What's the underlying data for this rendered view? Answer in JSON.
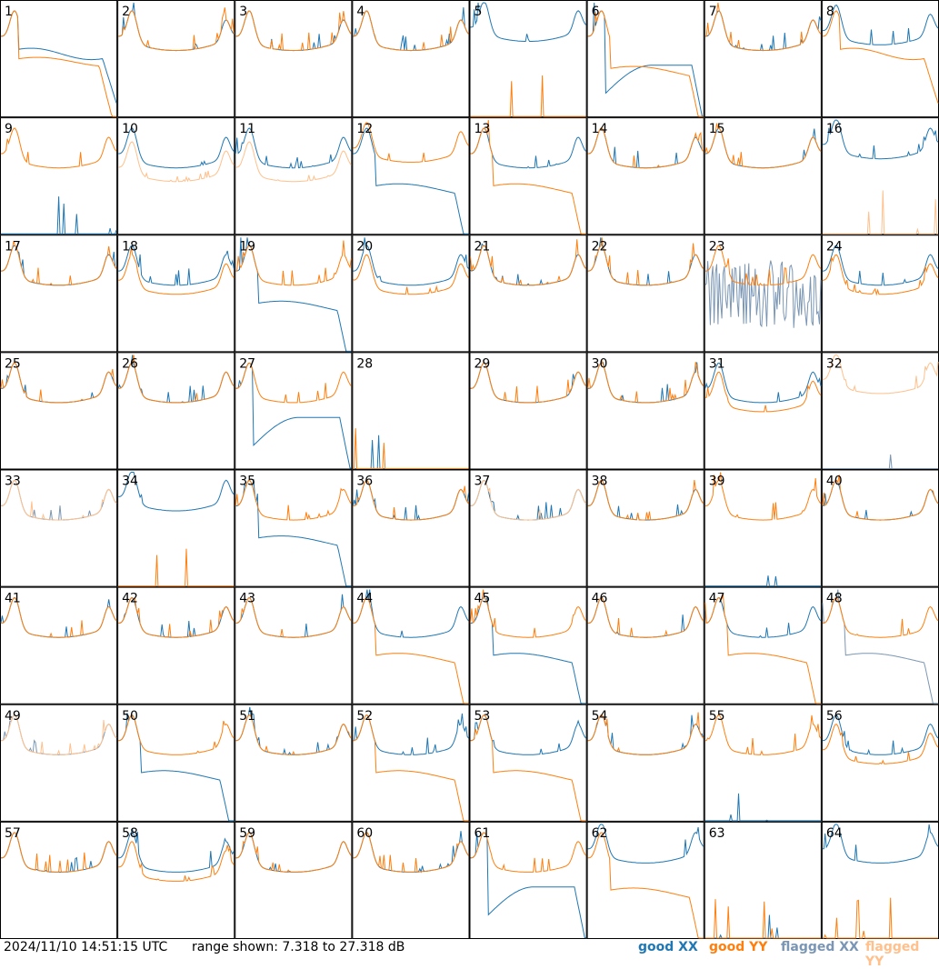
{
  "footer": {
    "timestamp": "2024/11/10 14:51:15 UTC",
    "range_text": "range shown: 7.318 to 27.318 dB"
  },
  "legend": [
    {
      "label": "good XX",
      "color": "#1f77b4"
    },
    {
      "label": "good YY",
      "color": "#ff7f0e"
    },
    {
      "label": "flagged XX",
      "color": "#7a96b4"
    },
    {
      "label": "flagged YY",
      "color": "#ffc08c"
    }
  ],
  "chart_data": {
    "type": "line",
    "title": "",
    "xlabel": "",
    "ylabel": "",
    "ylim": [
      7.318,
      27.318
    ],
    "unit": "dB",
    "grid_layout": "8x8 small multiples",
    "panel_labels": [
      "1",
      "2",
      "3",
      "4",
      "5",
      "6",
      "7",
      "8",
      "9",
      "10",
      "11",
      "12",
      "13",
      "14",
      "15",
      "16",
      "17",
      "18",
      "19",
      "20",
      "21",
      "22",
      "23",
      "24",
      "25",
      "26",
      "27",
      "28",
      "29",
      "30",
      "31",
      "32",
      "33",
      "34",
      "35",
      "36",
      "37",
      "38",
      "39",
      "40",
      "41",
      "42",
      "43",
      "44",
      "45",
      "46",
      "47",
      "48",
      "49",
      "50",
      "51",
      "52",
      "53",
      "54",
      "55",
      "56",
      "57",
      "58",
      "59",
      "60",
      "61",
      "62",
      "63",
      "64"
    ],
    "series_kinds": [
      "good XX",
      "good YY",
      "flagged XX",
      "flagged YY"
    ],
    "panels": [
      {
        "id": "1",
        "xx": "rolloff_mid",
        "yy": "rolloff_low",
        "xx_flag": false,
        "yy_flag": false
      },
      {
        "id": "2",
        "xx": "normal",
        "yy": "normal",
        "xx_flag": false,
        "yy_flag": false
      },
      {
        "id": "3",
        "xx": "normal",
        "yy": "normal",
        "xx_flag": false,
        "yy_flag": false
      },
      {
        "id": "4",
        "xx": "normal",
        "yy": "normal",
        "xx_flag": false,
        "yy_flag": false
      },
      {
        "id": "5",
        "xx": "high",
        "yy": "dead",
        "xx_flag": false,
        "yy_flag": false
      },
      {
        "id": "6",
        "xx": "deep",
        "yy": "drop",
        "xx_flag": false,
        "yy_flag": false
      },
      {
        "id": "7",
        "xx": "normal",
        "yy": "normal",
        "xx_flag": false,
        "yy_flag": false
      },
      {
        "id": "8",
        "xx": "offset_up",
        "yy": "rolloff_mid",
        "xx_flag": false,
        "yy_flag": false
      },
      {
        "id": "9",
        "xx": "dead",
        "yy": "normal",
        "xx_flag": false,
        "yy_flag": false
      },
      {
        "id": "10",
        "xx": "normal",
        "yy": "lowmid",
        "xx_flag": false,
        "yy_flag": true
      },
      {
        "id": "11",
        "xx": "normal",
        "yy": "lowmid",
        "xx_flag": false,
        "yy_flag": true
      },
      {
        "id": "12",
        "xx": "drop",
        "yy": "offset_up",
        "xx_flag": false,
        "yy_flag": false
      },
      {
        "id": "13",
        "xx": "normal",
        "yy": "drop",
        "xx_flag": false,
        "yy_flag": false
      },
      {
        "id": "14",
        "xx": "normal",
        "yy": "normal",
        "xx_flag": false,
        "yy_flag": false
      },
      {
        "id": "15",
        "xx": "normal",
        "yy": "normal",
        "xx_flag": false,
        "yy_flag": false
      },
      {
        "id": "16",
        "xx": "high",
        "yy": "dead",
        "xx_flag": false,
        "yy_flag": true
      },
      {
        "id": "17",
        "xx": "normal",
        "yy": "normal",
        "xx_flag": false,
        "yy_flag": false
      },
      {
        "id": "18",
        "xx": "normal",
        "yy": "low",
        "xx_flag": false,
        "yy_flag": false
      },
      {
        "id": "19",
        "xx": "drop",
        "yy": "normal",
        "xx_flag": false,
        "yy_flag": false
      },
      {
        "id": "20",
        "xx": "normal",
        "yy": "low",
        "xx_flag": false,
        "yy_flag": false
      },
      {
        "id": "21",
        "xx": "normal",
        "yy": "normal",
        "xx_flag": false,
        "yy_flag": false
      },
      {
        "id": "22",
        "xx": "normal",
        "yy": "normal",
        "xx_flag": false,
        "yy_flag": false
      },
      {
        "id": "23",
        "xx": "noisy",
        "yy": "normal",
        "xx_flag": true,
        "yy_flag": false
      },
      {
        "id": "24",
        "xx": "normal",
        "yy": "low",
        "xx_flag": false,
        "yy_flag": false
      },
      {
        "id": "25",
        "xx": "normal",
        "yy": "normal",
        "xx_flag": false,
        "yy_flag": false
      },
      {
        "id": "26",
        "xx": "normal",
        "yy": "normal",
        "xx_flag": false,
        "yy_flag": false
      },
      {
        "id": "27",
        "xx": "deep",
        "yy": "normal",
        "xx_flag": false,
        "yy_flag": false
      },
      {
        "id": "28",
        "xx": "dead",
        "yy": "dead",
        "xx_flag": false,
        "yy_flag": false
      },
      {
        "id": "29",
        "xx": "normal",
        "yy": "normal",
        "xx_flag": false,
        "yy_flag": false
      },
      {
        "id": "30",
        "xx": "normal",
        "yy": "normal",
        "xx_flag": false,
        "yy_flag": false
      },
      {
        "id": "31",
        "xx": "normal",
        "yy": "low",
        "xx_flag": false,
        "yy_flag": false
      },
      {
        "id": "32",
        "xx": "dead",
        "yy": "high",
        "xx_flag": true,
        "yy_flag": true
      },
      {
        "id": "33",
        "xx": "normal",
        "yy": "normal",
        "xx_flag": true,
        "yy_flag": true
      },
      {
        "id": "34",
        "xx": "high",
        "yy": "dead",
        "xx_flag": false,
        "yy_flag": false
      },
      {
        "id": "35",
        "xx": "drop",
        "yy": "normal",
        "xx_flag": false,
        "yy_flag": false
      },
      {
        "id": "36",
        "xx": "normal",
        "yy": "normal",
        "xx_flag": false,
        "yy_flag": false
      },
      {
        "id": "37",
        "xx": "normal",
        "yy": "normal",
        "xx_flag": false,
        "yy_flag": true
      },
      {
        "id": "38",
        "xx": "normal",
        "yy": "normal",
        "xx_flag": false,
        "yy_flag": false
      },
      {
        "id": "39",
        "xx": "dead",
        "yy": "normal",
        "xx_flag": false,
        "yy_flag": false
      },
      {
        "id": "40",
        "xx": "normal",
        "yy": "normal",
        "xx_flag": false,
        "yy_flag": false
      },
      {
        "id": "41",
        "xx": "normal",
        "yy": "normal",
        "xx_flag": false,
        "yy_flag": false
      },
      {
        "id": "42",
        "xx": "normal",
        "yy": "normal",
        "xx_flag": false,
        "yy_flag": false
      },
      {
        "id": "43",
        "xx": "normal",
        "yy": "normal",
        "xx_flag": false,
        "yy_flag": false
      },
      {
        "id": "44",
        "xx": "normal",
        "yy": "drop",
        "xx_flag": false,
        "yy_flag": false
      },
      {
        "id": "45",
        "xx": "drop",
        "yy": "normal",
        "xx_flag": false,
        "yy_flag": false
      },
      {
        "id": "46",
        "xx": "normal",
        "yy": "normal",
        "xx_flag": false,
        "yy_flag": false
      },
      {
        "id": "47",
        "xx": "normal",
        "yy": "drop",
        "xx_flag": false,
        "yy_flag": false
      },
      {
        "id": "48",
        "xx": "drop",
        "yy": "normal",
        "xx_flag": true,
        "yy_flag": false
      },
      {
        "id": "49",
        "xx": "normal",
        "yy": "normal",
        "xx_flag": true,
        "yy_flag": true
      },
      {
        "id": "50",
        "xx": "drop",
        "yy": "normal",
        "xx_flag": false,
        "yy_flag": false
      },
      {
        "id": "51",
        "xx": "normal",
        "yy": "normal",
        "xx_flag": false,
        "yy_flag": false
      },
      {
        "id": "52",
        "xx": "normal",
        "yy": "drop",
        "xx_flag": false,
        "yy_flag": false
      },
      {
        "id": "53",
        "xx": "normal",
        "yy": "drop",
        "xx_flag": false,
        "yy_flag": false
      },
      {
        "id": "54",
        "xx": "normal",
        "yy": "normal",
        "xx_flag": false,
        "yy_flag": false
      },
      {
        "id": "55",
        "xx": "dead",
        "yy": "normal",
        "xx_flag": false,
        "yy_flag": false
      },
      {
        "id": "56",
        "xx": "normal",
        "yy": "low",
        "xx_flag": false,
        "yy_flag": false
      },
      {
        "id": "57",
        "xx": "normal",
        "yy": "normal",
        "xx_flag": false,
        "yy_flag": false
      },
      {
        "id": "58",
        "xx": "normal",
        "yy": "low",
        "xx_flag": false,
        "yy_flag": false
      },
      {
        "id": "59",
        "xx": "normal",
        "yy": "normal",
        "xx_flag": false,
        "yy_flag": false
      },
      {
        "id": "60",
        "xx": "normal",
        "yy": "normal",
        "xx_flag": false,
        "yy_flag": false
      },
      {
        "id": "61",
        "xx": "deep",
        "yy": "normal",
        "xx_flag": false,
        "yy_flag": false
      },
      {
        "id": "62",
        "xx": "high",
        "yy": "drop",
        "xx_flag": false,
        "yy_flag": false
      },
      {
        "id": "63",
        "xx": "dead",
        "yy": "dead",
        "xx_flag": false,
        "yy_flag": false
      },
      {
        "id": "64",
        "xx": "high",
        "yy": "dead",
        "xx_flag": false,
        "yy_flag": false
      }
    ]
  }
}
